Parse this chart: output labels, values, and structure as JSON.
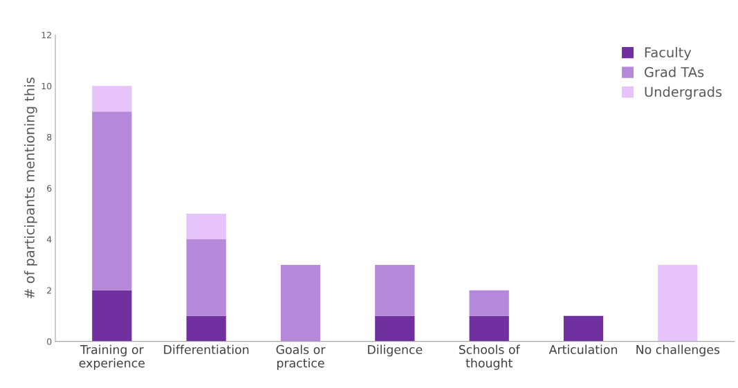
{
  "chart_data": {
    "type": "bar",
    "stacked": true,
    "ylabel": "# of participants mentioning this",
    "categories": [
      "Training or\nexperience",
      "Differentiation",
      "Goals or\npractice",
      "Diligence",
      "Schools of\nthought",
      "Articulation",
      "No challenges"
    ],
    "series": [
      {
        "name": "Faculty",
        "color": "#7030a0",
        "values": [
          2,
          1,
          0,
          1,
          1,
          1,
          0
        ]
      },
      {
        "name": "Grad TAs",
        "color": "#b588d9",
        "values": [
          7,
          3,
          3,
          2,
          1,
          0,
          0
        ]
      },
      {
        "name": "Undergrads",
        "color": "#e6c3fa",
        "values": [
          1,
          1,
          0,
          0,
          0,
          0,
          3
        ]
      }
    ],
    "ylim": [
      0,
      12
    ],
    "yticks": [
      0,
      2,
      4,
      6,
      8,
      10,
      12
    ],
    "grid": false,
    "legend": "top right"
  }
}
